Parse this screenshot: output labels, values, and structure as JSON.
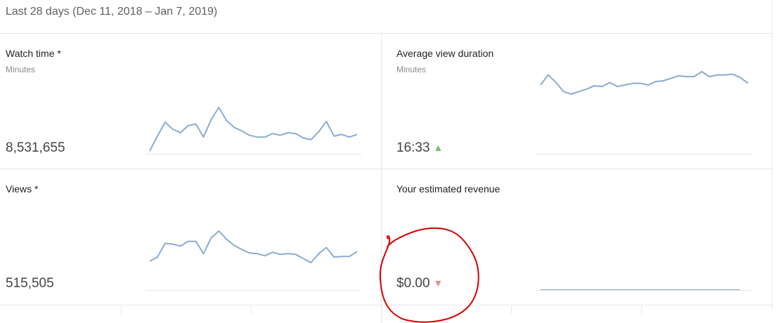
{
  "header": {
    "date_range": "Last 28 days (Dec 11, 2018 – Jan 7, 2019)"
  },
  "colors": {
    "line": "#8aabd0",
    "baseline": "#e6e6e6",
    "trend_up": "#74c26a",
    "trend_down": "#e88b8b",
    "annotation": "#d40000"
  },
  "cards": [
    {
      "title": "Watch time *",
      "subtitle": "Minutes",
      "value": "8,531,655",
      "trend": "",
      "series": [
        8.6,
        12.0,
        15.2,
        13.6,
        12.8,
        14.4,
        14.8,
        11.8,
        15.8,
        18.6,
        15.6,
        14.0,
        13.2,
        12.2,
        11.8,
        11.8,
        12.6,
        12.2,
        12.8,
        12.6,
        11.6,
        11.2,
        13.0,
        15.4,
        12.0,
        12.4,
        11.8,
        12.4
      ]
    },
    {
      "title": "Average view duration",
      "subtitle": "Minutes",
      "value": "16:33",
      "trend": "up",
      "trend_icon": "triangle-up-icon",
      "series": [
        14.0,
        16.4,
        14.6,
        12.4,
        11.8,
        12.4,
        13.0,
        13.8,
        13.6,
        14.6,
        13.6,
        14.0,
        14.4,
        14.4,
        14.0,
        14.8,
        15.0,
        15.6,
        16.2,
        16.0,
        16.0,
        17.2,
        16.0,
        16.4,
        16.4,
        16.6,
        15.8,
        14.4
      ]
    },
    {
      "title": "Views *",
      "subtitle": "",
      "value": "515,505",
      "trend": "",
      "series": [
        9.4,
        10.6,
        14.6,
        14.4,
        13.8,
        15.2,
        15.2,
        11.6,
        16.2,
        18.2,
        15.8,
        14.0,
        12.8,
        11.8,
        11.6,
        11.0,
        12.0,
        11.4,
        11.6,
        11.4,
        10.2,
        9.0,
        11.6,
        13.4,
        10.6,
        10.8,
        10.8,
        12.2
      ]
    },
    {
      "title": "Your estimated revenue",
      "subtitle": "",
      "value": "$0.00",
      "trend": "down",
      "trend_icon": "triangle-down-icon",
      "series": [
        0,
        0,
        0,
        0,
        0,
        0,
        0,
        0,
        0,
        0,
        0,
        0,
        0,
        0,
        0,
        0,
        0,
        0,
        0,
        0,
        0,
        0,
        0,
        0,
        0,
        0,
        0,
        0
      ]
    }
  ]
}
